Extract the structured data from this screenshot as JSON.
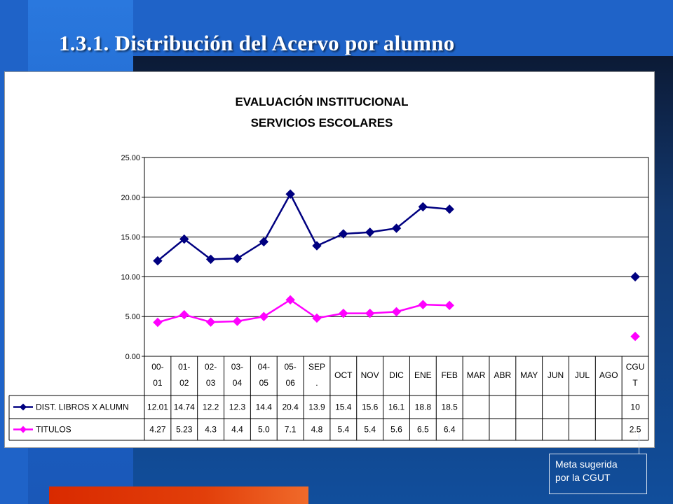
{
  "slide": {
    "title": "1.3.1. Distribución  del Acervo por alumno",
    "note_lines": [
      "Meta sugerida",
      "por la CGUT"
    ]
  },
  "colors": {
    "background": "#1f63c8",
    "accent_bar": "#e23f0a",
    "series_libros": "#000080",
    "series_titulos": "#ff00ff"
  },
  "chart_data": {
    "type": "line",
    "title": "EVALUACIÓN INSTITUCIONAL",
    "subtitle": "SERVICIOS ESCOLARES",
    "ylim": [
      0,
      25
    ],
    "yticks": [
      "0.00",
      "5.00",
      "10.00",
      "15.00",
      "20.00",
      "25.00"
    ],
    "grid": true,
    "categories": [
      [
        "00-",
        "01"
      ],
      [
        "01-",
        "02"
      ],
      [
        "02-",
        "03"
      ],
      [
        "03-",
        "04"
      ],
      [
        "04-",
        "05"
      ],
      [
        "05-",
        "06"
      ],
      [
        "SEP",
        "."
      ],
      [
        "OCT"
      ],
      [
        "NOV"
      ],
      [
        "DIC"
      ],
      [
        "ENE"
      ],
      [
        "FEB"
      ],
      [
        "MAR"
      ],
      [
        "ABR"
      ],
      [
        "MAY"
      ],
      [
        "JUN"
      ],
      [
        "JUL"
      ],
      [
        "AGO"
      ],
      [
        "CGU",
        "T"
      ]
    ],
    "series": [
      {
        "name": "DIST. LIBROS X ALUMN",
        "values": [
          12.01,
          14.74,
          12.2,
          12.3,
          14.4,
          20.4,
          13.9,
          15.4,
          15.6,
          16.1,
          18.8,
          18.5,
          null,
          null,
          null,
          null,
          null,
          null,
          10
        ],
        "labels": [
          "12.01",
          "14.74",
          "12.2",
          "12.3",
          "14.4",
          "20.4",
          "13.9",
          "15.4",
          "15.6",
          "16.1",
          "18.8",
          "18.5",
          "",
          "",
          "",
          "",
          "",
          "",
          "10"
        ]
      },
      {
        "name": "TITULOS",
        "values": [
          4.27,
          5.23,
          4.3,
          4.4,
          5.0,
          7.1,
          4.8,
          5.4,
          5.4,
          5.6,
          6.5,
          6.4,
          null,
          null,
          null,
          null,
          null,
          null,
          2.5
        ],
        "labels": [
          "4.27",
          "5.23",
          "4.3",
          "4.4",
          "5.0",
          "7.1",
          "4.8",
          "5.4",
          "5.4",
          "5.6",
          "6.5",
          "6.4",
          "",
          "",
          "",
          "",
          "",
          "",
          "2.5"
        ]
      }
    ]
  }
}
